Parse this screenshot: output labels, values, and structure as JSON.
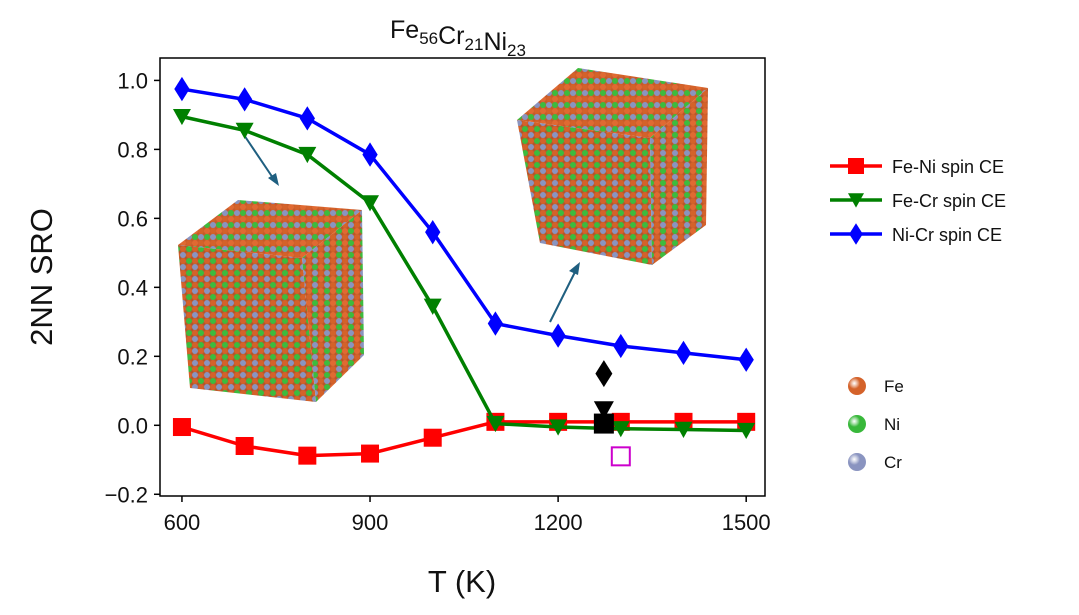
{
  "chart_data": {
    "type": "line",
    "title_parts": [
      {
        "el": "Fe",
        "sub": "56"
      },
      {
        "el": "Cr",
        "sub": "21"
      },
      {
        "el": "Ni",
        "sub": "23"
      }
    ],
    "xlabel": "T (K)",
    "ylabel": "2NN SRO",
    "xlim": [
      565,
      1530
    ],
    "ylim": [
      -0.205,
      1.065
    ],
    "xticks": [
      600,
      900,
      1200,
      1500
    ],
    "xtick_labels": [
      "600",
      "900",
      "1200",
      "1500"
    ],
    "yticks": [
      -0.2,
      0.0,
      0.2,
      0.4,
      0.6,
      0.8,
      1.0
    ],
    "ytick_labels": [
      "−0.2",
      "0.0",
      "0.2",
      "0.4",
      "0.6",
      "0.8",
      "1.0"
    ],
    "x": [
      600,
      700,
      800,
      900,
      1000,
      1100,
      1200,
      1300,
      1400,
      1500
    ],
    "series": [
      {
        "name": "Fe-Ni spin CE",
        "color": "#ff0000",
        "marker": "square",
        "values": [
          -0.005,
          -0.06,
          -0.088,
          -0.082,
          -0.036,
          0.01,
          0.01,
          0.01,
          0.01,
          0.01
        ]
      },
      {
        "name": "Fe-Cr spin CE",
        "color": "#008000",
        "marker": "triangle-down",
        "values": [
          0.895,
          0.855,
          0.785,
          0.645,
          0.345,
          0.005,
          -0.005,
          -0.01,
          -0.012,
          -0.015
        ]
      },
      {
        "name": "Ni-Cr spin CE",
        "color": "#0000ff",
        "marker": "diamond",
        "values": [
          0.975,
          0.945,
          0.89,
          0.785,
          0.56,
          0.295,
          0.26,
          0.23,
          0.21,
          0.19
        ]
      }
    ],
    "extra_points": [
      {
        "name": "black-diamond",
        "x": 1273,
        "y": 0.15,
        "color": "#000000",
        "marker": "diamond"
      },
      {
        "name": "black-triangle",
        "x": 1273,
        "y": 0.045,
        "color": "#000000",
        "marker": "triangle-down"
      },
      {
        "name": "black-square",
        "x": 1273,
        "y": 0.005,
        "color": "#000000",
        "marker": "square"
      },
      {
        "name": "magenta-open-square",
        "x": 1300,
        "y": -0.09,
        "color": "#cc00cc",
        "marker": "open-square"
      }
    ],
    "legend_position": "right"
  },
  "atom_legend": [
    {
      "label": "Fe",
      "color": "#d4622a"
    },
    {
      "label": "Ni",
      "color": "#38b83a"
    },
    {
      "label": "Cr",
      "color": "#8a94c0"
    }
  ]
}
